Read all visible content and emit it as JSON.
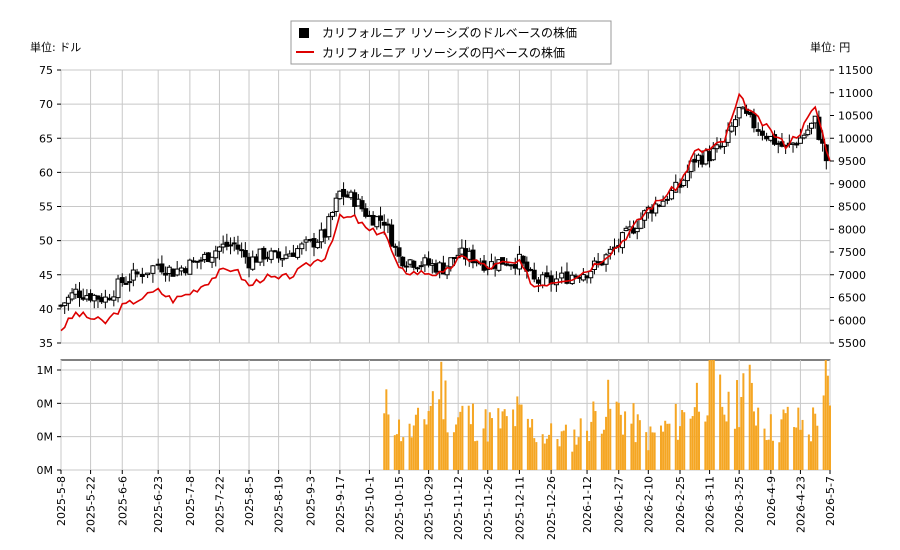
{
  "legend": {
    "usd_label": "カリフォルニア リソーシズのドルベースの株価",
    "jpy_label": "カリフォルニア リソーシズの円ベースの株価"
  },
  "units": {
    "left": "単位: ドル",
    "right": "単位: 円"
  },
  "colors": {
    "candle": "#000000",
    "jpy_line": "#dd0000",
    "volume": "#f5a623",
    "grid": "#c8c8c8"
  },
  "chart_data": [
    {
      "type": "candlestick",
      "title": "",
      "yaxis_left": {
        "label": "単位: ドル",
        "range": [
          35,
          75
        ],
        "ticks": [
          35,
          40,
          45,
          50,
          55,
          60,
          65,
          70,
          75
        ]
      },
      "yaxis_right": {
        "label": "単位: 円",
        "range": [
          5500,
          11500
        ],
        "ticks": [
          5500,
          6000,
          6500,
          7000,
          7500,
          8000,
          8500,
          9000,
          9500,
          10000,
          10500,
          11000,
          11500
        ]
      },
      "x_tick_labels": [
        "2025-5-8",
        "2025-5-22",
        "2025-6-6",
        "2025-6-23",
        "2025-7-8",
        "2025-7-22",
        "2025-8-5",
        "2025-8-19",
        "2025-9-3",
        "2025-9-17",
        "2025-10-1",
        "2025-10-15",
        "2025-10-29",
        "2025-11-12",
        "2025-11-26",
        "2025-12-11",
        "2025-12-26",
        "2026-1-12",
        "2026-1-27",
        "2026-2-10",
        "2026-2-25",
        "2026-3-11",
        "2026-3-25",
        "2026-4-9",
        "2026-4-23",
        "2026-5-7"
      ],
      "usd_close_weekly": [
        {
          "date": "2025-5-8",
          "close": 40.5
        },
        {
          "date": "2025-5-15",
          "close": 42.5
        },
        {
          "date": "2025-5-22",
          "close": 42.0
        },
        {
          "date": "2025-5-29",
          "close": 41.5
        },
        {
          "date": "2025-6-6",
          "close": 44.0
        },
        {
          "date": "2025-6-13",
          "close": 45.0
        },
        {
          "date": "2025-6-23",
          "close": 46.5
        },
        {
          "date": "2025-6-30",
          "close": 45.5
        },
        {
          "date": "2025-7-8",
          "close": 46.5
        },
        {
          "date": "2025-7-15",
          "close": 47.5
        },
        {
          "date": "2025-7-22",
          "close": 49.0
        },
        {
          "date": "2025-7-29",
          "close": 49.5
        },
        {
          "date": "2025-8-5",
          "close": 47.0
        },
        {
          "date": "2025-8-12",
          "close": 48.0
        },
        {
          "date": "2025-8-19",
          "close": 47.5
        },
        {
          "date": "2025-8-26",
          "close": 48.5
        },
        {
          "date": "2025-9-3",
          "close": 49.5
        },
        {
          "date": "2025-9-10",
          "close": 51.0
        },
        {
          "date": "2025-9-17",
          "close": 57.0
        },
        {
          "date": "2025-9-24",
          "close": 56.0
        },
        {
          "date": "2025-10-1",
          "close": 53.5
        },
        {
          "date": "2025-10-8",
          "close": 53.0
        },
        {
          "date": "2025-10-15",
          "close": 47.5
        },
        {
          "date": "2025-10-22",
          "close": 47.0
        },
        {
          "date": "2025-10-29",
          "close": 46.5
        },
        {
          "date": "2025-11-5",
          "close": 46.0
        },
        {
          "date": "2025-11-12",
          "close": 48.0
        },
        {
          "date": "2025-11-19",
          "close": 47.5
        },
        {
          "date": "2025-11-26",
          "close": 46.5
        },
        {
          "date": "2025-12-3",
          "close": 47.0
        },
        {
          "date": "2025-12-11",
          "close": 47.0
        },
        {
          "date": "2025-12-18",
          "close": 44.0
        },
        {
          "date": "2025-12-26",
          "close": 44.0
        },
        {
          "date": "2026-1-5",
          "close": 45.0
        },
        {
          "date": "2026-1-12",
          "close": 45.5
        },
        {
          "date": "2026-1-19",
          "close": 47.0
        },
        {
          "date": "2026-1-27",
          "close": 49.5
        },
        {
          "date": "2026-2-3",
          "close": 52.0
        },
        {
          "date": "2026-2-10",
          "close": 54.5
        },
        {
          "date": "2026-2-17",
          "close": 56.0
        },
        {
          "date": "2026-2-25",
          "close": 58.0
        },
        {
          "date": "2026-3-4",
          "close": 62.0
        },
        {
          "date": "2026-3-11",
          "close": 62.5
        },
        {
          "date": "2026-3-18",
          "close": 64.0
        },
        {
          "date": "2026-3-25",
          "close": 69.0
        },
        {
          "date": "2026-4-1",
          "close": 67.0
        },
        {
          "date": "2026-4-9",
          "close": 65.0
        },
        {
          "date": "2026-4-16",
          "close": 63.5
        },
        {
          "date": "2026-4-23",
          "close": 65.0
        },
        {
          "date": "2026-4-30",
          "close": 67.5
        },
        {
          "date": "2026-5-7",
          "close": 60.0
        }
      ],
      "jpy_close_weekly": [
        {
          "date": "2025-5-8",
          "close": 5800
        },
        {
          "date": "2025-5-15",
          "close": 6150
        },
        {
          "date": "2025-5-22",
          "close": 6050
        },
        {
          "date": "2025-5-29",
          "close": 5950
        },
        {
          "date": "2025-6-6",
          "close": 6300
        },
        {
          "date": "2025-6-13",
          "close": 6450
        },
        {
          "date": "2025-6-23",
          "close": 6650
        },
        {
          "date": "2025-6-30",
          "close": 6450
        },
        {
          "date": "2025-7-8",
          "close": 6600
        },
        {
          "date": "2025-7-15",
          "close": 6800
        },
        {
          "date": "2025-7-22",
          "close": 7050
        },
        {
          "date": "2025-7-29",
          "close": 7150
        },
        {
          "date": "2025-8-5",
          "close": 6750
        },
        {
          "date": "2025-8-12",
          "close": 6950
        },
        {
          "date": "2025-8-19",
          "close": 6900
        },
        {
          "date": "2025-8-26",
          "close": 7000
        },
        {
          "date": "2025-9-3",
          "close": 7250
        },
        {
          "date": "2025-9-10",
          "close": 7400
        },
        {
          "date": "2025-9-17",
          "close": 8250
        },
        {
          "date": "2025-9-24",
          "close": 8250
        },
        {
          "date": "2025-10-1",
          "close": 7950
        },
        {
          "date": "2025-10-8",
          "close": 7950
        },
        {
          "date": "2025-10-15",
          "close": 7100
        },
        {
          "date": "2025-10-22",
          "close": 7050
        },
        {
          "date": "2025-10-29",
          "close": 7050
        },
        {
          "date": "2025-11-5",
          "close": 7000
        },
        {
          "date": "2025-11-12",
          "close": 7350
        },
        {
          "date": "2025-11-19",
          "close": 7350
        },
        {
          "date": "2025-11-26",
          "close": 7150
        },
        {
          "date": "2025-12-3",
          "close": 7250
        },
        {
          "date": "2025-12-11",
          "close": 7250
        },
        {
          "date": "2025-12-18",
          "close": 6750
        },
        {
          "date": "2025-12-26",
          "close": 6850
        },
        {
          "date": "2026-1-5",
          "close": 6950
        },
        {
          "date": "2026-1-12",
          "close": 7100
        },
        {
          "date": "2026-1-19",
          "close": 7350
        },
        {
          "date": "2026-1-27",
          "close": 7650
        },
        {
          "date": "2026-2-3",
          "close": 8050
        },
        {
          "date": "2026-2-10",
          "close": 8450
        },
        {
          "date": "2026-2-17",
          "close": 8700
        },
        {
          "date": "2026-2-25",
          "close": 9000
        },
        {
          "date": "2026-3-4",
          "close": 9700
        },
        {
          "date": "2026-3-11",
          "close": 9750
        },
        {
          "date": "2026-3-18",
          "close": 9950
        },
        {
          "date": "2026-3-25",
          "close": 10900
        },
        {
          "date": "2026-4-1",
          "close": 10500
        },
        {
          "date": "2026-4-9",
          "close": 10150
        },
        {
          "date": "2026-4-16",
          "close": 9850
        },
        {
          "date": "2026-4-23",
          "close": 10150
        },
        {
          "date": "2026-4-30",
          "close": 10700
        },
        {
          "date": "2026-5-7",
          "close": 9500
        }
      ]
    },
    {
      "type": "bar",
      "title": "",
      "yaxis": {
        "ticks": [
          "0M",
          "0M",
          "0M",
          "1M"
        ]
      },
      "volume_relative": [
        {
          "date": "2025-10-8",
          "value": 0.55
        },
        {
          "date": "2025-10-10",
          "value": 0.75
        },
        {
          "date": "2025-10-13",
          "value": 0.6
        },
        {
          "date": "2025-10-15",
          "value": 0.45
        },
        {
          "date": "2025-10-20",
          "value": 0.4
        },
        {
          "date": "2025-10-27",
          "value": 0.55
        },
        {
          "date": "2025-11-3",
          "value": 1.0
        },
        {
          "date": "2025-11-10",
          "value": 0.5
        },
        {
          "date": "2025-11-14",
          "value": 0.62
        },
        {
          "date": "2025-11-24",
          "value": 0.5
        },
        {
          "date": "2025-12-3",
          "value": 0.52
        },
        {
          "date": "2025-12-10",
          "value": 0.6
        },
        {
          "date": "2025-12-20",
          "value": 0.4
        },
        {
          "date": "2026-1-5",
          "value": 0.35
        },
        {
          "date": "2026-1-14",
          "value": 0.55
        },
        {
          "date": "2026-1-20",
          "value": 0.72
        },
        {
          "date": "2026-1-30",
          "value": 0.6
        },
        {
          "date": "2026-2-10",
          "value": 0.35
        },
        {
          "date": "2026-2-25",
          "value": 0.55
        },
        {
          "date": "2026-3-5",
          "value": 0.8
        },
        {
          "date": "2026-3-12",
          "value": 1.0
        },
        {
          "date": "2026-3-20",
          "value": 0.6
        },
        {
          "date": "2026-3-27",
          "value": 0.95
        },
        {
          "date": "2026-4-9",
          "value": 0.45
        },
        {
          "date": "2026-4-17",
          "value": 0.55
        },
        {
          "date": "2026-4-28",
          "value": 0.45
        },
        {
          "date": "2026-5-5",
          "value": 1.0
        },
        {
          "date": "2026-5-7",
          "value": 0.6
        }
      ]
    }
  ]
}
